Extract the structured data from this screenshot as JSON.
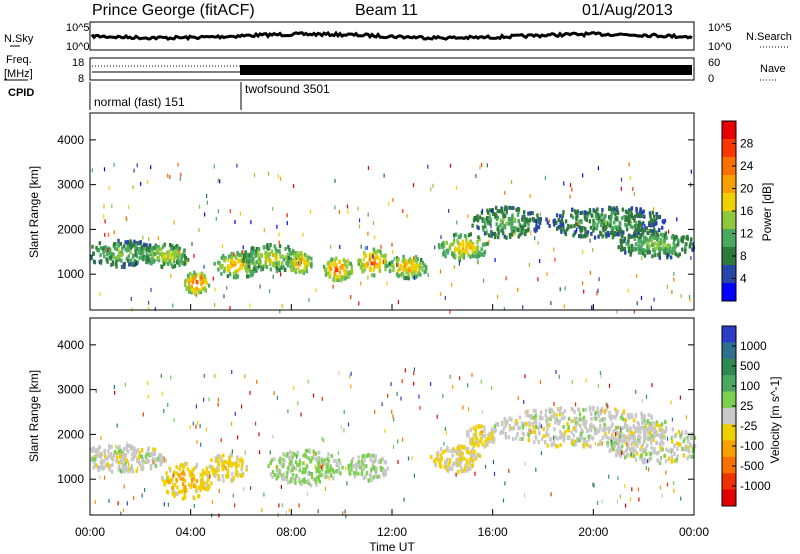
{
  "header": {
    "radar": "Prince George (fitACF)",
    "beam": "Beam 11",
    "date": "01/Aug/2013"
  },
  "top_panels": {
    "nsky_label": "N.Sky",
    "nsky_ticks": [
      "10^5",
      "10^0"
    ],
    "nsearch_label": "N.Search",
    "nsearch_ticks": [
      "10^5",
      "10^0"
    ],
    "freq_label_1": "Freq.",
    "freq_label_2": "[MHz]",
    "freq_ticks": [
      "18",
      "8"
    ],
    "nave_label": "Nave",
    "nave_ticks": [
      "60",
      "0"
    ],
    "cpid_label": "CPID",
    "cpid_segments": [
      {
        "name": "normal (fast) 151",
        "start_hour": 0,
        "end_hour": 6
      },
      {
        "name": "twofsound 3501",
        "start_hour": 6,
        "end_hour": 24
      }
    ]
  },
  "power_panel": {
    "ylabel": "Slant Range [km]",
    "yticks": [
      "4000",
      "3000",
      "2000",
      "1000"
    ],
    "colorbar_label": "Power [dB]",
    "colorbar_ticks": [
      "28",
      "24",
      "20",
      "16",
      "12",
      "8",
      "4"
    ],
    "colors": [
      "#0000ff",
      "#2646a8",
      "#2f7a3a",
      "#4aa860",
      "#90c83c",
      "#f0d000",
      "#f8a000",
      "#f87000",
      "#f83800",
      "#e80000"
    ]
  },
  "velocity_panel": {
    "ylabel": "Slant Range [km]",
    "yticks": [
      "4000",
      "3000",
      "2000",
      "1000"
    ],
    "colorbar_label": "Velocity [m s^-1]",
    "colorbar_ticks": [
      "1000",
      "500",
      "100",
      "25",
      "-25",
      "-100",
      "-500",
      "-1000"
    ],
    "colors": [
      "#2a3cc8",
      "#2f6f90",
      "#2f8a52",
      "#4aa860",
      "#7cd050",
      "#c8c8c8",
      "#f0d000",
      "#f8a000",
      "#f87000",
      "#f03000",
      "#e00000"
    ]
  },
  "x_axis": {
    "label": "Time UT",
    "ticks": [
      "00:00",
      "04:00",
      "08:00",
      "12:00",
      "16:00",
      "20:00",
      "00:00"
    ]
  },
  "chart_data": {
    "type": "heatmap",
    "title": "Prince George (fitACF)  Beam 11  01/Aug/2013",
    "xlabel": "Time UT",
    "ylabel": "Slant Range [km]",
    "x_range_hours": [
      0,
      24
    ],
    "y_range_km": [
      200,
      4600
    ],
    "panels": [
      {
        "name": "Power",
        "unit": "dB",
        "scale": [
          0,
          32
        ],
        "blobs": [
          {
            "t": 1.2,
            "r": 1500,
            "dt": 1.6,
            "dr": 300,
            "v": 14
          },
          {
            "t": 3.0,
            "r": 1450,
            "dt": 1.0,
            "dr": 260,
            "v": 18
          },
          {
            "t": 4.2,
            "r": 850,
            "dt": 0.5,
            "dr": 250,
            "v": 27
          },
          {
            "t": 5.8,
            "r": 1250,
            "dt": 0.9,
            "dr": 300,
            "v": 22
          },
          {
            "t": 7.2,
            "r": 1400,
            "dt": 1.2,
            "dr": 300,
            "v": 18
          },
          {
            "t": 8.3,
            "r": 1300,
            "dt": 0.5,
            "dr": 250,
            "v": 24
          },
          {
            "t": 9.8,
            "r": 1150,
            "dt": 0.6,
            "dr": 250,
            "v": 27
          },
          {
            "t": 11.2,
            "r": 1300,
            "dt": 0.6,
            "dr": 300,
            "v": 26
          },
          {
            "t": 12.6,
            "r": 1200,
            "dt": 0.8,
            "dr": 250,
            "v": 22
          },
          {
            "t": 14.8,
            "r": 1650,
            "dt": 1.0,
            "dr": 300,
            "v": 21
          },
          {
            "t": 16.5,
            "r": 2200,
            "dt": 1.4,
            "dr": 350,
            "v": 14
          },
          {
            "t": 20.5,
            "r": 2200,
            "dt": 2.5,
            "dr": 350,
            "v": 12
          },
          {
            "t": 22.5,
            "r": 1700,
            "dt": 1.6,
            "dr": 300,
            "v": 15
          }
        ]
      },
      {
        "name": "Velocity",
        "unit": "m s^-1",
        "scale": [
          -1000,
          1000
        ],
        "blobs": [
          {
            "t": 1.2,
            "r": 1500,
            "dt": 1.8,
            "dr": 300,
            "v": 0
          },
          {
            "t": 3.8,
            "r": 1000,
            "dt": 1.0,
            "dr": 400,
            "v": -300
          },
          {
            "t": 5.4,
            "r": 1300,
            "dt": 0.8,
            "dr": 300,
            "v": -250
          },
          {
            "t": 8.5,
            "r": 1300,
            "dt": 1.5,
            "dr": 400,
            "v": 200
          },
          {
            "t": 11.0,
            "r": 1300,
            "dt": 0.8,
            "dr": 300,
            "v": 150
          },
          {
            "t": 14.5,
            "r": 1500,
            "dt": 1.0,
            "dr": 300,
            "v": -150
          },
          {
            "t": 15.5,
            "r": 2000,
            "dt": 0.6,
            "dr": 250,
            "v": -200
          },
          {
            "t": 19.5,
            "r": 2200,
            "dt": 3.5,
            "dr": 450,
            "v": 0
          },
          {
            "t": 22.5,
            "r": 1800,
            "dt": 2.0,
            "dr": 400,
            "v": 0
          }
        ]
      }
    ]
  }
}
